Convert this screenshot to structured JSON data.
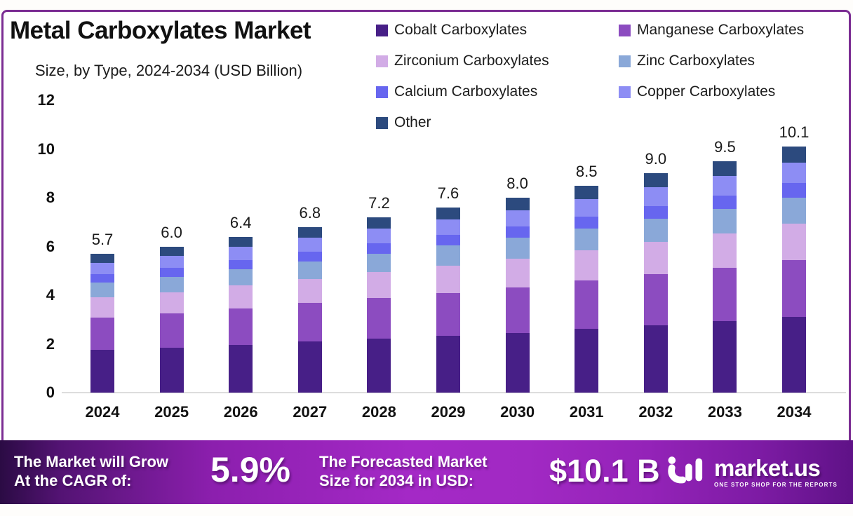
{
  "title": "Metal Carboxylates Market",
  "subtitle": "Size, by Type, 2024-2034 (USD Billion)",
  "colors": {
    "frame_border": "#7b2d93",
    "plot_background": "#ffffff",
    "axis_text": "#111111",
    "baseline": "#dddddd",
    "banner_gradient_start": "#2b0b44",
    "banner_gradient_mid": "#a429c6",
    "banner_gradient_end": "#5f1287",
    "banner_text": "#ffffff"
  },
  "chart_data": {
    "type": "bar",
    "stacked": true,
    "title": "Metal Carboxylates Market Size, by Type, 2024-2034 (USD Billion)",
    "xlabel": "",
    "ylabel": "",
    "ylim": [
      0,
      12
    ],
    "yticks": [
      0,
      2,
      4,
      6,
      8,
      10,
      12
    ],
    "grid": false,
    "legend_position": "top-right",
    "categories": [
      "2024",
      "2025",
      "2026",
      "2027",
      "2028",
      "2029",
      "2030",
      "2031",
      "2032",
      "2033",
      "2034"
    ],
    "totals": [
      5.7,
      6.0,
      6.4,
      6.8,
      7.2,
      7.6,
      8.0,
      8.5,
      9.0,
      9.5,
      10.1
    ],
    "totals_display": [
      "5.7",
      "6.0",
      "6.4",
      "6.8",
      "7.2",
      "7.6",
      "8.0",
      "8.5",
      "9.0",
      "9.5",
      "10.1"
    ],
    "series": [
      {
        "name": "Cobalt Carboxylates",
        "color": "#471f87",
        "values": [
          1.76,
          1.85,
          1.97,
          2.09,
          2.22,
          2.34,
          2.46,
          2.62,
          2.77,
          2.93,
          3.11
        ]
      },
      {
        "name": "Manganese Carboxylates",
        "color": "#8c4cc0",
        "values": [
          1.32,
          1.39,
          1.48,
          1.58,
          1.67,
          1.76,
          1.86,
          1.97,
          2.09,
          2.2,
          2.34
        ]
      },
      {
        "name": "Zirconium Carboxylates",
        "color": "#d2ace6",
        "values": [
          0.84,
          0.88,
          0.94,
          1.0,
          1.06,
          1.12,
          1.18,
          1.25,
          1.32,
          1.4,
          1.48
        ]
      },
      {
        "name": "Zinc Carboxylates",
        "color": "#8aa8d8",
        "values": [
          0.6,
          0.64,
          0.68,
          0.72,
          0.76,
          0.81,
          0.85,
          0.9,
          0.95,
          1.01,
          1.07
        ]
      },
      {
        "name": "Calcium Carboxylates",
        "color": "#6766ef",
        "values": [
          0.33,
          0.35,
          0.37,
          0.39,
          0.42,
          0.44,
          0.46,
          0.49,
          0.52,
          0.55,
          0.59
        ]
      },
      {
        "name": "Copper Carboxylates",
        "color": "#8d8df4",
        "values": [
          0.48,
          0.51,
          0.54,
          0.58,
          0.61,
          0.65,
          0.68,
          0.72,
          0.77,
          0.81,
          0.86
        ]
      },
      {
        "name": "Other",
        "color": "#2c4a7e",
        "values": [
          0.36,
          0.38,
          0.41,
          0.44,
          0.46,
          0.49,
          0.51,
          0.54,
          0.58,
          0.61,
          0.65
        ]
      }
    ]
  },
  "banner": {
    "cagr_label_line1": "The Market will Grow",
    "cagr_label_line2": "At the CAGR of:",
    "cagr_value": "5.9%",
    "forecast_label_line1": "The Forecasted Market",
    "forecast_label_line2": "Size for 2034 in USD:",
    "forecast_value": "$10.1 B",
    "logo_name": "market.us",
    "logo_tagline": "ONE STOP SHOP FOR THE REPORTS"
  }
}
